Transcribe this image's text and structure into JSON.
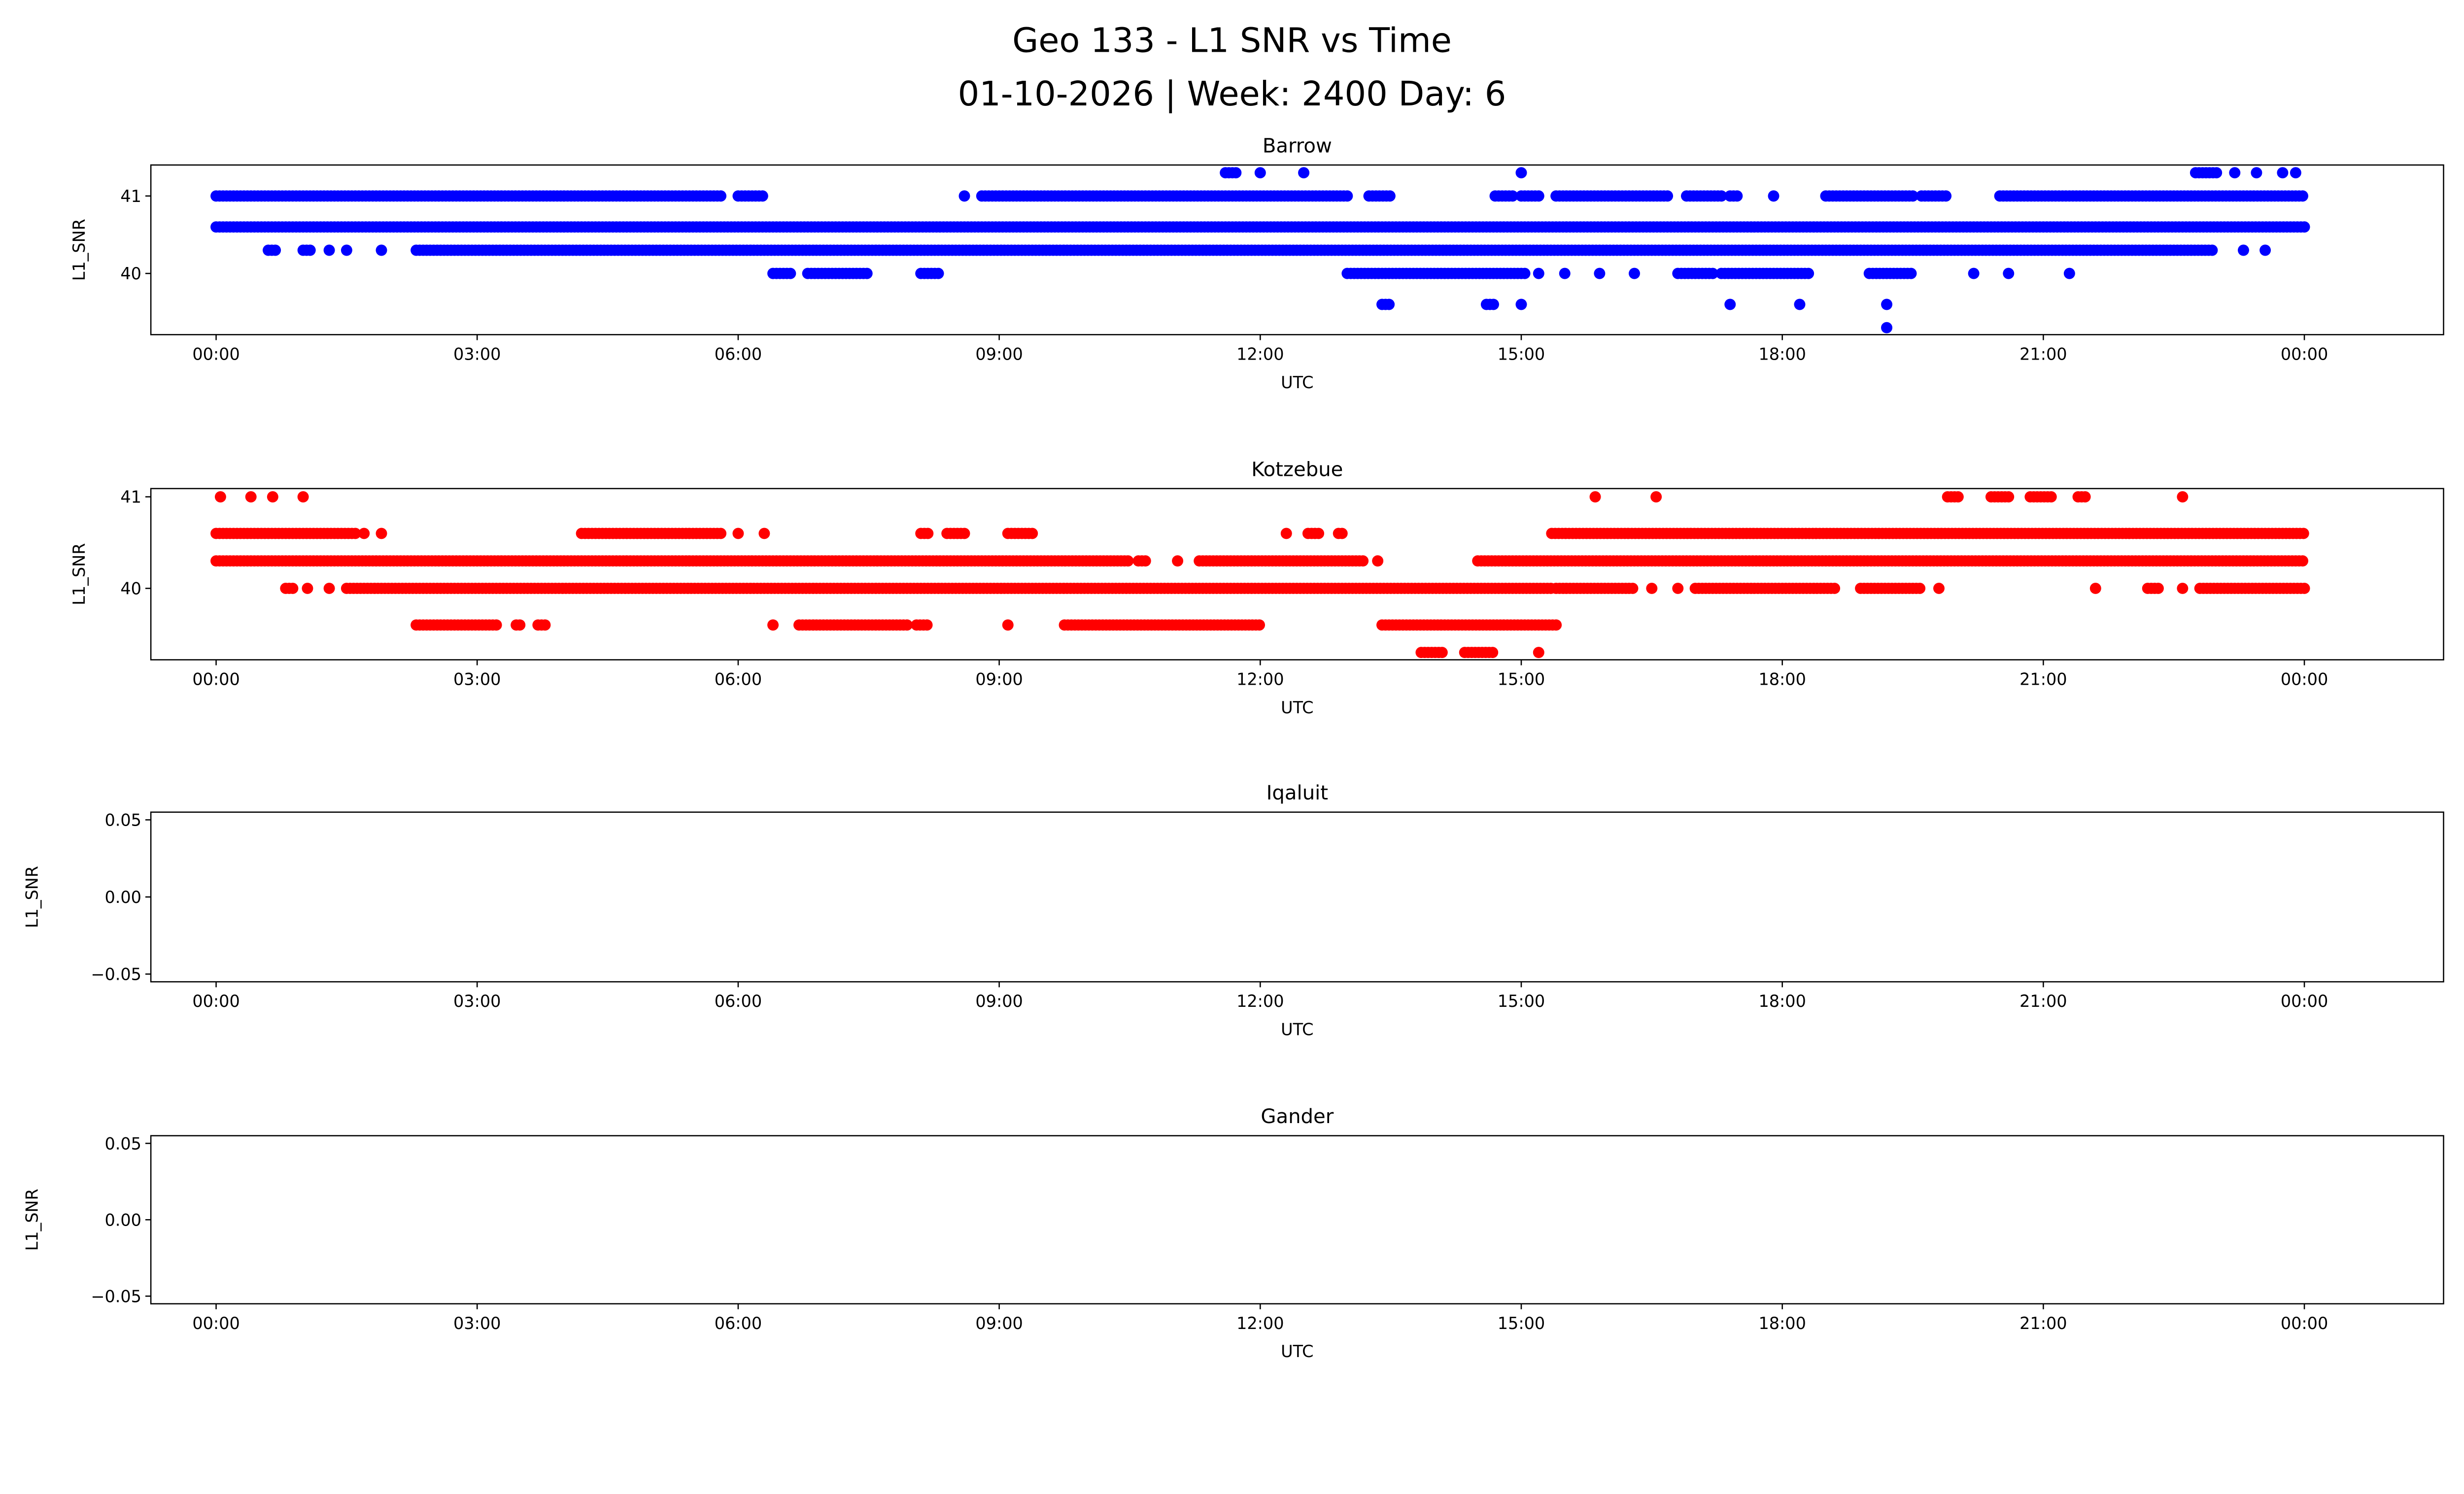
{
  "figure": {
    "suptitle_line1": "Geo 133 - L1 SNR vs Time",
    "suptitle_line2": "01-10-2026 | Week: 2400 Day: 6"
  },
  "chart_data": [
    {
      "type": "scatter",
      "title": "Barrow",
      "xlabel": "UTC",
      "ylabel": "L1_SNR",
      "color": "#0000ff",
      "xlim_hours": [
        -0.75,
        25.6
      ],
      "ylim": [
        39.21,
        41.4
      ],
      "x_ticks": [
        0,
        3,
        6,
        9,
        12,
        15,
        18,
        21,
        24
      ],
      "x_tick_labels": [
        "00:00",
        "03:00",
        "06:00",
        "09:00",
        "12:00",
        "15:00",
        "18:00",
        "21:00",
        "00:00"
      ],
      "y_ticks": [
        40,
        41
      ],
      "y_tick_labels": [
        "40",
        "41"
      ],
      "sample_spacing_hours": 0.04,
      "runs": [
        {
          "y": 41.3,
          "x": [
            [
              11.6,
              11.75
            ],
            [
              12.0,
              12.0
            ],
            [
              12.5,
              12.5
            ],
            [
              15.0,
              15.0
            ],
            [
              22.75,
              23.0
            ],
            [
              23.2,
              23.2
            ],
            [
              23.45,
              23.45
            ],
            [
              23.75,
              23.75
            ],
            [
              23.9,
              23.9
            ]
          ]
        },
        {
          "y": 41.0,
          "x": [
            [
              0.0,
              5.8
            ],
            [
              6.0,
              6.3
            ],
            [
              8.6,
              8.6
            ],
            [
              8.8,
              13.0
            ],
            [
              13.25,
              13.5
            ],
            [
              14.7,
              14.9
            ],
            [
              15.0,
              15.2
            ],
            [
              15.4,
              16.7
            ],
            [
              16.9,
              17.3
            ],
            [
              17.4,
              17.5
            ],
            [
              17.9,
              17.9
            ],
            [
              18.5,
              19.5
            ],
            [
              19.6,
              19.9
            ],
            [
              20.5,
              24.0
            ]
          ]
        },
        {
          "y": 40.6,
          "x": [
            [
              0.0,
              24.0
            ]
          ]
        },
        {
          "y": 40.3,
          "x": [
            [
              0.6,
              0.7
            ],
            [
              1.0,
              1.1
            ],
            [
              1.3,
              1.3
            ],
            [
              1.5,
              1.5
            ],
            [
              1.9,
              1.9
            ],
            [
              2.3,
              22.95
            ],
            [
              23.3,
              23.3
            ],
            [
              23.55,
              23.55
            ]
          ]
        },
        {
          "y": 40.0,
          "x": [
            [
              6.4,
              6.6
            ],
            [
              6.8,
              7.5
            ],
            [
              8.1,
              8.3
            ],
            [
              13.0,
              15.05
            ],
            [
              15.2,
              15.2
            ],
            [
              15.5,
              15.5
            ],
            [
              15.9,
              15.9
            ],
            [
              16.3,
              16.3
            ],
            [
              16.8,
              17.2
            ],
            [
              17.3,
              18.3
            ],
            [
              19.0,
              19.5
            ],
            [
              20.2,
              20.2
            ],
            [
              20.6,
              20.6
            ],
            [
              21.3,
              21.3
            ]
          ]
        },
        {
          "y": 39.6,
          "x": [
            [
              13.4,
              13.5
            ],
            [
              14.6,
              14.7
            ],
            [
              15.0,
              15.0
            ],
            [
              17.4,
              17.4
            ],
            [
              18.2,
              18.2
            ],
            [
              19.2,
              19.2
            ]
          ]
        },
        {
          "y": 39.3,
          "x": [
            [
              19.2,
              19.2
            ]
          ]
        }
      ]
    },
    {
      "type": "scatter",
      "title": "Kotzebue",
      "xlabel": "UTC",
      "ylabel": "L1_SNR",
      "color": "#ff0000",
      "xlim_hours": [
        -0.75,
        25.6
      ],
      "ylim": [
        39.22,
        41.09
      ],
      "x_ticks": [
        0,
        3,
        6,
        9,
        12,
        15,
        18,
        21,
        24
      ],
      "x_tick_labels": [
        "00:00",
        "03:00",
        "06:00",
        "09:00",
        "12:00",
        "15:00",
        "18:00",
        "21:00",
        "00:00"
      ],
      "y_ticks": [
        40,
        41
      ],
      "y_tick_labels": [
        "40",
        "41"
      ],
      "sample_spacing_hours": 0.04,
      "runs": [
        {
          "y": 41.0,
          "x": [
            [
              0.05,
              0.05
            ],
            [
              0.4,
              0.4
            ],
            [
              0.65,
              0.65
            ],
            [
              1.0,
              1.0
            ],
            [
              15.85,
              15.85
            ],
            [
              16.55,
              16.55
            ],
            [
              19.9,
              20.05
            ],
            [
              20.4,
              20.6
            ],
            [
              20.85,
              21.1
            ],
            [
              21.4,
              21.5
            ],
            [
              22.6,
              22.6
            ]
          ]
        },
        {
          "y": 40.6,
          "x": [
            [
              0.0,
              1.6
            ],
            [
              1.7,
              1.7
            ],
            [
              1.9,
              1.9
            ],
            [
              4.2,
              5.8
            ],
            [
              6.0,
              6.0
            ],
            [
              6.3,
              6.3
            ],
            [
              8.1,
              8.2
            ],
            [
              8.4,
              8.6
            ],
            [
              9.1,
              9.4
            ],
            [
              12.3,
              12.3
            ],
            [
              12.55,
              12.7
            ],
            [
              12.9,
              12.95
            ],
            [
              15.35,
              24.0
            ]
          ]
        },
        {
          "y": 40.3,
          "x": [
            [
              0.0,
              10.5
            ],
            [
              10.6,
              10.7
            ],
            [
              11.05,
              11.05
            ],
            [
              11.3,
              13.2
            ],
            [
              13.35,
              13.35
            ],
            [
              14.5,
              24.0
            ]
          ]
        },
        {
          "y": 40.0,
          "x": [
            [
              0.8,
              0.9
            ],
            [
              1.05,
              1.05
            ],
            [
              1.3,
              1.3
            ],
            [
              1.5,
              15.35
            ],
            [
              15.4,
              16.3
            ],
            [
              16.5,
              16.5
            ],
            [
              16.8,
              16.8
            ],
            [
              17.0,
              18.6
            ],
            [
              18.9,
              19.6
            ],
            [
              19.8,
              19.8
            ],
            [
              21.6,
              21.6
            ],
            [
              22.2,
              22.35
            ],
            [
              22.6,
              22.6
            ],
            [
              22.8,
              24.0
            ]
          ]
        },
        {
          "y": 39.6,
          "x": [
            [
              2.3,
              3.25
            ],
            [
              3.45,
              3.5
            ],
            [
              3.7,
              3.8
            ],
            [
              6.4,
              6.4
            ],
            [
              6.7,
              7.95
            ],
            [
              8.05,
              8.2
            ],
            [
              9.1,
              9.1
            ],
            [
              9.75,
              12.0
            ],
            [
              13.4,
              15.4
            ]
          ]
        },
        {
          "y": 39.3,
          "x": [
            [
              13.85,
              14.1
            ],
            [
              14.35,
              14.7
            ],
            [
              15.2,
              15.2
            ]
          ]
        }
      ]
    },
    {
      "type": "scatter",
      "title": "Iqaluit",
      "xlabel": "UTC",
      "ylabel": "L1_SNR",
      "color": "#0000ff",
      "xlim_hours": [
        -0.75,
        25.6
      ],
      "ylim": [
        -0.055,
        0.055
      ],
      "x_ticks": [
        0,
        3,
        6,
        9,
        12,
        15,
        18,
        21,
        24
      ],
      "x_tick_labels": [
        "00:00",
        "03:00",
        "06:00",
        "09:00",
        "12:00",
        "15:00",
        "18:00",
        "21:00",
        "00:00"
      ],
      "y_ticks": [
        -0.05,
        0.0,
        0.05
      ],
      "y_tick_labels": [
        "−0.05",
        "0.00",
        "0.05"
      ],
      "runs": []
    },
    {
      "type": "scatter",
      "title": "Gander",
      "xlabel": "UTC",
      "ylabel": "L1_SNR",
      "color": "#0000ff",
      "xlim_hours": [
        -0.75,
        25.6
      ],
      "ylim": [
        -0.055,
        0.055
      ],
      "x_ticks": [
        0,
        3,
        6,
        9,
        12,
        15,
        18,
        21,
        24
      ],
      "x_tick_labels": [
        "00:00",
        "03:00",
        "06:00",
        "09:00",
        "12:00",
        "15:00",
        "18:00",
        "21:00",
        "00:00"
      ],
      "y_ticks": [
        -0.05,
        0.0,
        0.05
      ],
      "y_tick_labels": [
        "−0.05",
        "0.00",
        "0.05"
      ],
      "runs": []
    }
  ]
}
